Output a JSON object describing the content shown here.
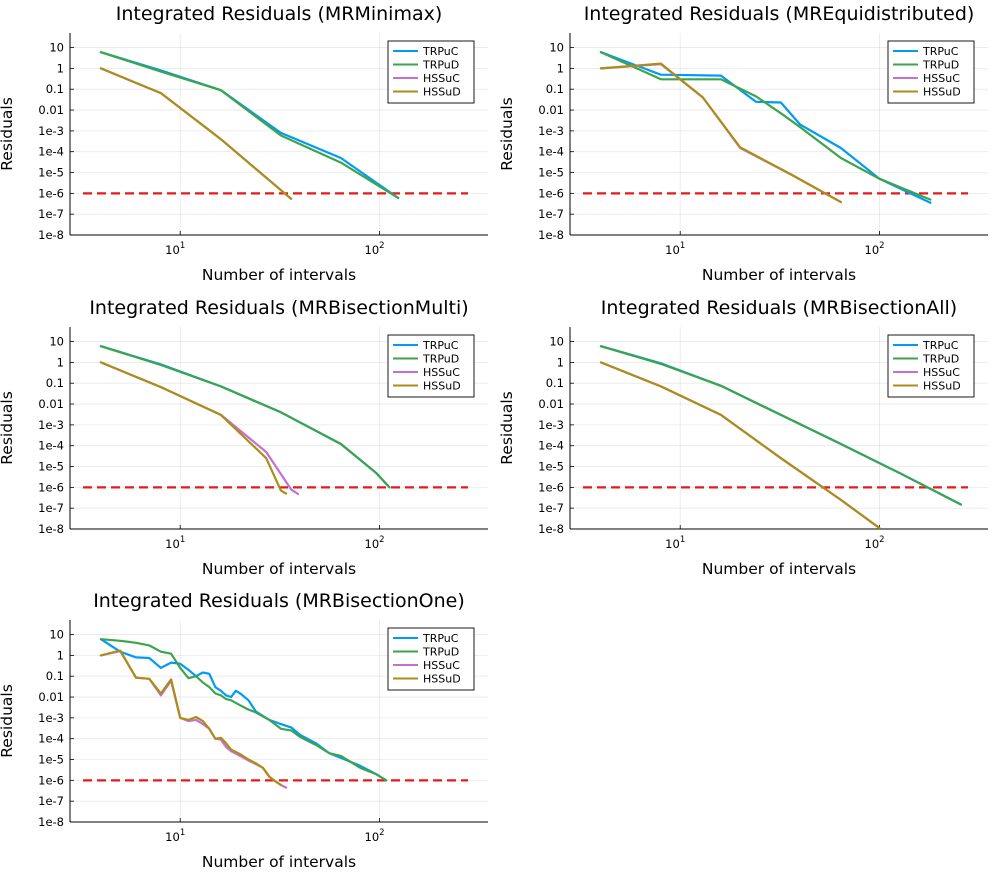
{
  "figure": {
    "background": "#ffffff",
    "threshold_color": "#e41a1c",
    "series_colors": {
      "TRPuC": "#009af9",
      "TRPuD": "#3da44d",
      "HSSuC": "#c271d2",
      "HSSuD": "#ac8d18"
    }
  },
  "chart_data": [
    {
      "type": "line",
      "title": "Integrated Residuals (MRMinimax)",
      "xlabel": "Number of intervals",
      "ylabel": "Residuals",
      "xscale": "log",
      "yscale": "log",
      "xlim": [
        2.8,
        350
      ],
      "ylim": [
        1e-08,
        50
      ],
      "xticks": [
        {
          "v": 10,
          "base": "10",
          "exp": "1"
        },
        {
          "v": 100,
          "base": "10",
          "exp": "2"
        }
      ],
      "yticks": [
        {
          "v": 10,
          "label": "10"
        },
        {
          "v": 1,
          "label": "1"
        },
        {
          "v": 0.1,
          "label": "0.1"
        },
        {
          "v": 0.01,
          "label": "0.01"
        },
        {
          "v": 0.001,
          "label": "1e-3"
        },
        {
          "v": 0.0001,
          "label": "1e-4"
        },
        {
          "v": 1e-05,
          "label": "1e-5"
        },
        {
          "v": 1e-06,
          "label": "1e-6"
        },
        {
          "v": 1e-07,
          "label": "1e-7"
        },
        {
          "v": 1e-08,
          "label": "1e-8"
        }
      ],
      "grid": true,
      "legend": "top-right",
      "threshold": 1e-06,
      "series": [
        {
          "name": "TRPuC",
          "x": [
            4,
            8,
            16,
            32,
            64,
            124
          ],
          "y": [
            6,
            0.8,
            0.09,
            0.0008,
            5e-05,
            6e-07
          ]
        },
        {
          "name": "TRPuD",
          "x": [
            4,
            8,
            16,
            32,
            64,
            124
          ],
          "y": [
            6,
            0.7,
            0.09,
            0.0006,
            3e-05,
            6e-07
          ]
        },
        {
          "name": "HSSuC",
          "x": [
            4,
            8,
            16,
            36
          ],
          "y": [
            1,
            0.065,
            0.0004,
            5.5e-07
          ]
        },
        {
          "name": "HSSuD",
          "x": [
            4,
            8,
            16,
            36
          ],
          "y": [
            1,
            0.065,
            0.0004,
            5.5e-07
          ]
        }
      ]
    },
    {
      "type": "line",
      "title": "Integrated Residuals (MREquidistributed)",
      "xlabel": "Number of intervals",
      "ylabel": "Residuals",
      "xscale": "log",
      "yscale": "log",
      "xlim": [
        2.8,
        350
      ],
      "ylim": [
        1e-08,
        50
      ],
      "xticks": [
        {
          "v": 10,
          "base": "10",
          "exp": "1"
        },
        {
          "v": 100,
          "base": "10",
          "exp": "2"
        }
      ],
      "yticks": [
        {
          "v": 10,
          "label": "10"
        },
        {
          "v": 1,
          "label": "1"
        },
        {
          "v": 0.1,
          "label": "0.1"
        },
        {
          "v": 0.01,
          "label": "0.01"
        },
        {
          "v": 0.001,
          "label": "1e-3"
        },
        {
          "v": 0.0001,
          "label": "1e-4"
        },
        {
          "v": 1e-05,
          "label": "1e-5"
        },
        {
          "v": 1e-06,
          "label": "1e-6"
        },
        {
          "v": 1e-07,
          "label": "1e-7"
        },
        {
          "v": 1e-08,
          "label": "1e-8"
        }
      ],
      "grid": true,
      "legend": "top-right",
      "threshold": 1e-06,
      "series": [
        {
          "name": "TRPuC",
          "x": [
            4,
            8,
            16,
            24,
            32,
            40,
            64,
            100,
            180
          ],
          "y": [
            6,
            0.5,
            0.45,
            0.025,
            0.023,
            0.002,
            0.00015,
            5e-06,
            3.5e-07
          ]
        },
        {
          "name": "TRPuD",
          "x": [
            4,
            8,
            16,
            24,
            32,
            40,
            64,
            100,
            180
          ],
          "y": [
            6,
            0.3,
            0.3,
            0.045,
            0.007,
            0.0015,
            5e-05,
            5e-06,
            5e-07
          ]
        },
        {
          "name": "HSSuC",
          "x": [
            4,
            8,
            13,
            20,
            36,
            64
          ],
          "y": [
            1,
            1.6,
            0.04,
            0.00015,
            8e-06,
            3.8e-07
          ]
        },
        {
          "name": "HSSuD",
          "x": [
            4,
            8,
            13,
            20,
            36,
            64
          ],
          "y": [
            1,
            1.7,
            0.04,
            0.00016,
            8e-06,
            3.8e-07
          ]
        }
      ]
    },
    {
      "type": "line",
      "title": "Integrated Residuals (MRBisectionMulti)",
      "xlabel": "Number of intervals",
      "ylabel": "Residuals",
      "xscale": "log",
      "yscale": "log",
      "xlim": [
        2.8,
        350
      ],
      "ylim": [
        1e-08,
        50
      ],
      "xticks": [
        {
          "v": 10,
          "base": "10",
          "exp": "1"
        },
        {
          "v": 100,
          "base": "10",
          "exp": "2"
        }
      ],
      "yticks": [
        {
          "v": 10,
          "label": "10"
        },
        {
          "v": 1,
          "label": "1"
        },
        {
          "v": 0.1,
          "label": "0.1"
        },
        {
          "v": 0.01,
          "label": "0.01"
        },
        {
          "v": 0.001,
          "label": "1e-3"
        },
        {
          "v": 0.0001,
          "label": "1e-4"
        },
        {
          "v": 1e-05,
          "label": "1e-5"
        },
        {
          "v": 1e-06,
          "label": "1e-6"
        },
        {
          "v": 1e-07,
          "label": "1e-7"
        },
        {
          "v": 1e-08,
          "label": "1e-8"
        }
      ],
      "grid": true,
      "legend": "top-right",
      "threshold": 1e-06,
      "series": [
        {
          "name": "TRPuC",
          "x": [
            4,
            8,
            16,
            32,
            64,
            96,
            112
          ],
          "y": [
            6,
            0.8,
            0.07,
            0.004,
            0.00012,
            5e-06,
            1e-06
          ]
        },
        {
          "name": "TRPuD",
          "x": [
            4,
            8,
            16,
            32,
            64,
            96,
            112
          ],
          "y": [
            6,
            0.75,
            0.07,
            0.004,
            0.00012,
            5e-06,
            1e-06
          ]
        },
        {
          "name": "HSSuC",
          "x": [
            4,
            8,
            16,
            27,
            36,
            39
          ],
          "y": [
            1,
            0.065,
            0.003,
            5e-05,
            8e-07,
            4.8e-07
          ]
        },
        {
          "name": "HSSuD",
          "x": [
            4,
            8,
            16,
            27,
            32,
            34
          ],
          "y": [
            1,
            0.065,
            0.003,
            2.5e-05,
            7e-07,
            5e-07
          ]
        }
      ]
    },
    {
      "type": "line",
      "title": "Integrated Residuals (MRBisectionAll)",
      "xlabel": "Number of intervals",
      "ylabel": "Residuals",
      "xscale": "log",
      "yscale": "log",
      "xlim": [
        2.8,
        350
      ],
      "ylim": [
        1e-08,
        50
      ],
      "xticks": [
        {
          "v": 10,
          "base": "10",
          "exp": "1"
        },
        {
          "v": 100,
          "base": "10",
          "exp": "2"
        }
      ],
      "yticks": [
        {
          "v": 10,
          "label": "10"
        },
        {
          "v": 1,
          "label": "1"
        },
        {
          "v": 0.1,
          "label": "0.1"
        },
        {
          "v": 0.01,
          "label": "0.01"
        },
        {
          "v": 0.001,
          "label": "1e-3"
        },
        {
          "v": 0.0001,
          "label": "1e-4"
        },
        {
          "v": 1e-05,
          "label": "1e-5"
        },
        {
          "v": 1e-06,
          "label": "1e-6"
        },
        {
          "v": 1e-07,
          "label": "1e-7"
        },
        {
          "v": 1e-08,
          "label": "1e-8"
        }
      ],
      "grid": true,
      "legend": "top-right",
      "threshold": 1e-06,
      "series": [
        {
          "name": "TRPuC",
          "x": [
            4,
            8,
            16,
            32,
            64,
            128,
            256
          ],
          "y": [
            6,
            0.9,
            0.075,
            0.003,
            0.00012,
            4.5e-06,
            1.5e-07
          ]
        },
        {
          "name": "TRPuD",
          "x": [
            4,
            8,
            16,
            32,
            64,
            128,
            256
          ],
          "y": [
            6,
            0.85,
            0.075,
            0.003,
            0.00012,
            4.5e-06,
            1.5e-07
          ]
        },
        {
          "name": "HSSuC",
          "x": [
            4,
            8,
            16,
            32,
            64,
            100
          ],
          "y": [
            1,
            0.07,
            0.003,
            2.5e-05,
            2.5e-07,
            1.1e-08
          ]
        },
        {
          "name": "HSSuD",
          "x": [
            4,
            8,
            16,
            32,
            64,
            100
          ],
          "y": [
            1,
            0.07,
            0.003,
            2.5e-05,
            2.5e-07,
            1.1e-08
          ]
        }
      ]
    },
    {
      "type": "line",
      "title": "Integrated Residuals (MRBisectionOne)",
      "xlabel": "Number of intervals",
      "ylabel": "Residuals",
      "xscale": "log",
      "yscale": "log",
      "xlim": [
        2.8,
        350
      ],
      "ylim": [
        1e-08,
        50
      ],
      "xticks": [
        {
          "v": 10,
          "base": "10",
          "exp": "1"
        },
        {
          "v": 100,
          "base": "10",
          "exp": "2"
        }
      ],
      "yticks": [
        {
          "v": 10,
          "label": "10"
        },
        {
          "v": 1,
          "label": "1"
        },
        {
          "v": 0.1,
          "label": "0.1"
        },
        {
          "v": 0.01,
          "label": "0.01"
        },
        {
          "v": 0.001,
          "label": "1e-3"
        },
        {
          "v": 0.0001,
          "label": "1e-4"
        },
        {
          "v": 1e-05,
          "label": "1e-5"
        },
        {
          "v": 1e-06,
          "label": "1e-6"
        },
        {
          "v": 1e-07,
          "label": "1e-7"
        },
        {
          "v": 1e-08,
          "label": "1e-8"
        }
      ],
      "grid": true,
      "legend": "top-right",
      "threshold": 1e-06,
      "series": [
        {
          "name": "TRPuC",
          "x": [
            4,
            5,
            6,
            7,
            8,
            9,
            10,
            11,
            12,
            13,
            14,
            15,
            16,
            17,
            18,
            19,
            20,
            22,
            24,
            28,
            32,
            36,
            40,
            48,
            56,
            64,
            80,
            96,
            108
          ],
          "y": [
            6,
            1.5,
            0.8,
            0.75,
            0.25,
            0.45,
            0.4,
            0.2,
            0.1,
            0.15,
            0.13,
            0.03,
            0.02,
            0.012,
            0.01,
            0.02,
            0.015,
            0.007,
            0.002,
            0.0008,
            0.0005,
            0.00035,
            0.00015,
            6e-05,
            2e-05,
            1.2e-05,
            5e-06,
            2e-06,
            1e-06
          ]
        },
        {
          "name": "TRPuD",
          "x": [
            4,
            5,
            6,
            7,
            8,
            9,
            10,
            11,
            12,
            13,
            14,
            15,
            16,
            17,
            18,
            20,
            22,
            24,
            28,
            32,
            36,
            40,
            48,
            56,
            64,
            80,
            96,
            108
          ],
          "y": [
            6,
            5,
            4,
            3,
            1.5,
            1.2,
            0.25,
            0.08,
            0.1,
            0.05,
            0.03,
            0.015,
            0.012,
            0.008,
            0.007,
            0.004,
            0.0025,
            0.0018,
            0.0008,
            0.0003,
            0.00025,
            0.00012,
            5e-05,
            2e-05,
            1.5e-05,
            4e-06,
            2e-06,
            1e-06
          ]
        },
        {
          "name": "HSSuC",
          "x": [
            4,
            5,
            6,
            7,
            8,
            9,
            10,
            11,
            12,
            13,
            14,
            15,
            16,
            17,
            18,
            20,
            22,
            24,
            26,
            28,
            30,
            32,
            34
          ],
          "y": [
            1,
            1.6,
            0.085,
            0.075,
            0.012,
            0.06,
            0.001,
            0.0007,
            0.0008,
            0.0005,
            0.0003,
            0.0001,
            9e-05,
            4e-05,
            2.5e-05,
            1.5e-05,
            9e-06,
            6e-06,
            4e-06,
            1.5e-06,
            9e-07,
            6e-07,
            4.5e-07
          ]
        },
        {
          "name": "HSSuD",
          "x": [
            4,
            5,
            6,
            7,
            8,
            9,
            10,
            11,
            12,
            13,
            14,
            15,
            16,
            17,
            18,
            20,
            22,
            24,
            26,
            28,
            30,
            32
          ],
          "y": [
            1,
            1.7,
            0.085,
            0.075,
            0.015,
            0.07,
            0.001,
            0.0008,
            0.0011,
            0.0007,
            0.0003,
            0.0001,
            0.00011,
            6e-05,
            3e-05,
            1.8e-05,
            1e-05,
            6.5e-06,
            4e-06,
            1.5e-06,
            9e-07,
            6e-07
          ]
        }
      ]
    }
  ]
}
